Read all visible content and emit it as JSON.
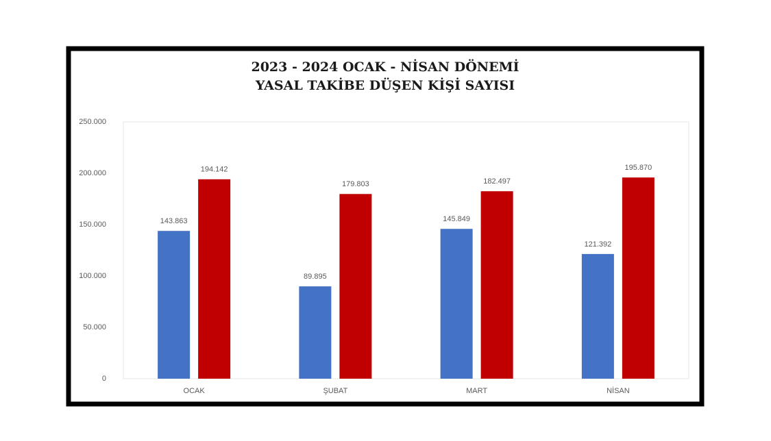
{
  "chart_data": {
    "type": "bar",
    "title": "2023 - 2024 OCAK - NİSAN DÖNEMİ",
    "subtitle": "YASAL TAKİBE DÜŞEN KİŞİ SAYISI",
    "categories": [
      "OCAK",
      "ŞUBAT",
      "MART",
      "NİSAN"
    ],
    "series": [
      {
        "color": "#4472c4",
        "values": [
          143863,
          89895,
          145849,
          121392
        ],
        "value_labels": [
          "143.863",
          "89.895",
          "145.849",
          "121.392"
        ]
      },
      {
        "color": "#c00000",
        "values": [
          194142,
          179803,
          182497,
          195870
        ],
        "value_labels": [
          "194.142",
          "179.803",
          "182.497",
          "195.870"
        ]
      }
    ],
    "ylim": [
      0,
      250000
    ],
    "yticks": [
      0,
      {
        "value": 50000,
        "label": "50.000"
      },
      {
        "value": 100000,
        "label": "100.000"
      },
      {
        "value": 150000,
        "label": "150.000"
      },
      {
        "value": 200000,
        "label": "200.000"
      },
      {
        "value": 250000,
        "label": "250.000"
      }
    ],
    "grid": false
  }
}
